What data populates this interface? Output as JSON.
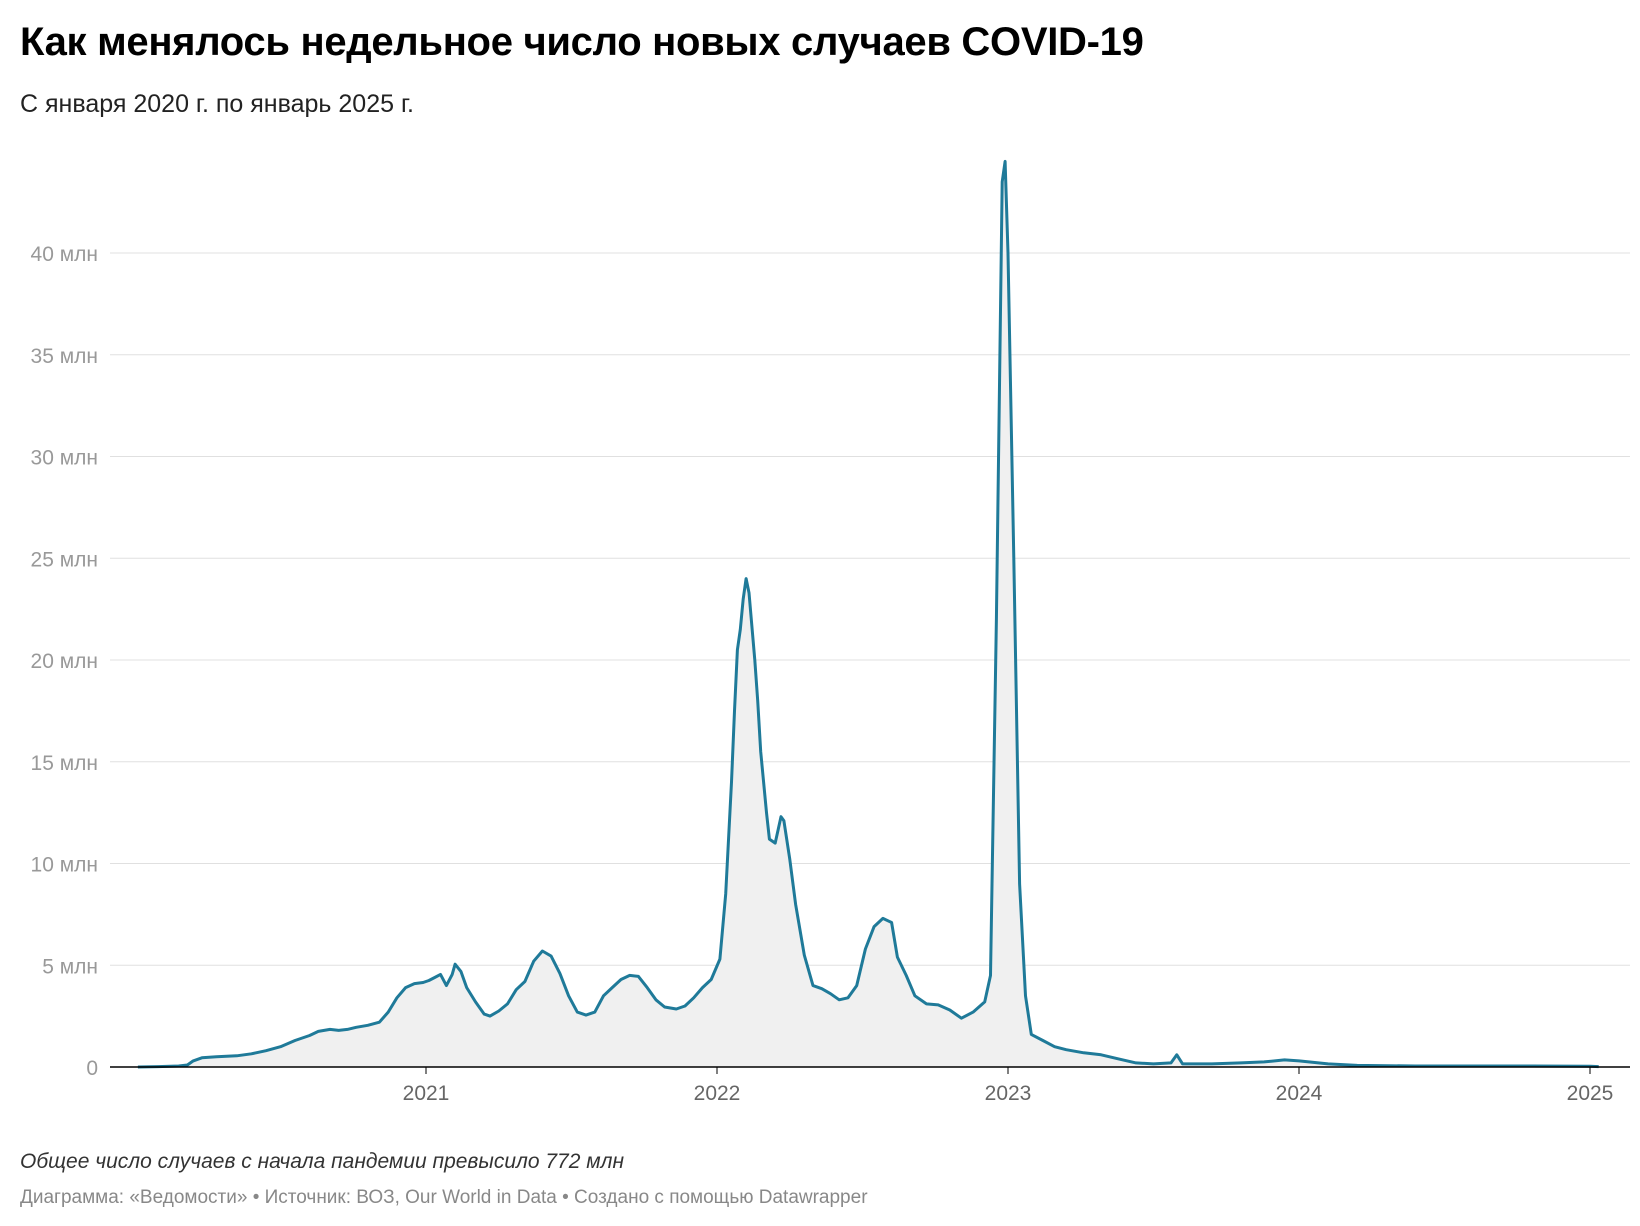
{
  "header": {
    "title": "Как менялось недельное число новых случаев COVID-19",
    "subtitle": "С января 2020 г. по январь 2025 г."
  },
  "footer": {
    "note": "Общее число случаев с начала пандемии превысило 772 млн",
    "credits": "Диаграмма: «Ведомости» • Источник: ВОЗ, Our World in Data • Создано с помощью Datawrapper"
  },
  "colors": {
    "line": "#1f7a99",
    "area": "#f0f0f0",
    "grid": "#e0e0e0",
    "axis": "#000000"
  },
  "chart_data": {
    "type": "area",
    "ylim": [
      0,
      45
    ],
    "xlim": [
      2020.0,
      2025.1
    ],
    "yticks": [
      {
        "value": 0,
        "label": "0"
      },
      {
        "value": 5,
        "label": "5 млн"
      },
      {
        "value": 10,
        "label": "10 млн"
      },
      {
        "value": 15,
        "label": "15 млн"
      },
      {
        "value": 20,
        "label": "20 млн"
      },
      {
        "value": 25,
        "label": "25 млн"
      },
      {
        "value": 30,
        "label": "30 млн"
      },
      {
        "value": 35,
        "label": "35 млн"
      },
      {
        "value": 40,
        "label": "40 млн"
      }
    ],
    "xticks": [
      {
        "value": 2021,
        "label": "2021"
      },
      {
        "value": 2022,
        "label": "2022"
      },
      {
        "value": 2023,
        "label": "2023"
      },
      {
        "value": 2024,
        "label": "2024"
      },
      {
        "value": 2025,
        "label": "2025"
      }
    ],
    "series": [
      {
        "values": [
          [
            2020.01,
            0
          ],
          [
            2020.08,
            0.02
          ],
          [
            2020.15,
            0.05
          ],
          [
            2020.18,
            0.1
          ],
          [
            2020.2,
            0.3
          ],
          [
            2020.23,
            0.45
          ],
          [
            2020.28,
            0.5
          ],
          [
            2020.35,
            0.55
          ],
          [
            2020.4,
            0.65
          ],
          [
            2020.45,
            0.8
          ],
          [
            2020.5,
            1.0
          ],
          [
            2020.55,
            1.3
          ],
          [
            2020.6,
            1.55
          ],
          [
            2020.63,
            1.75
          ],
          [
            2020.67,
            1.85
          ],
          [
            2020.7,
            1.8
          ],
          [
            2020.73,
            1.85
          ],
          [
            2020.76,
            1.95
          ],
          [
            2020.8,
            2.05
          ],
          [
            2020.84,
            2.2
          ],
          [
            2020.87,
            2.7
          ],
          [
            2020.9,
            3.4
          ],
          [
            2020.93,
            3.9
          ],
          [
            2020.96,
            4.1
          ],
          [
            2020.99,
            4.15
          ],
          [
            2021.01,
            4.25
          ],
          [
            2021.03,
            4.4
          ],
          [
            2021.05,
            4.55
          ],
          [
            2021.07,
            4.0
          ],
          [
            2021.09,
            4.55
          ],
          [
            2021.1,
            5.05
          ],
          [
            2021.12,
            4.7
          ],
          [
            2021.14,
            3.9
          ],
          [
            2021.17,
            3.2
          ],
          [
            2021.2,
            2.6
          ],
          [
            2021.22,
            2.5
          ],
          [
            2021.25,
            2.75
          ],
          [
            2021.28,
            3.1
          ],
          [
            2021.31,
            3.8
          ],
          [
            2021.34,
            4.2
          ],
          [
            2021.37,
            5.2
          ],
          [
            2021.4,
            5.7
          ],
          [
            2021.43,
            5.45
          ],
          [
            2021.46,
            4.6
          ],
          [
            2021.49,
            3.5
          ],
          [
            2021.52,
            2.7
          ],
          [
            2021.55,
            2.55
          ],
          [
            2021.58,
            2.7
          ],
          [
            2021.61,
            3.5
          ],
          [
            2021.64,
            3.9
          ],
          [
            2021.67,
            4.3
          ],
          [
            2021.7,
            4.5
          ],
          [
            2021.73,
            4.45
          ],
          [
            2021.76,
            3.9
          ],
          [
            2021.79,
            3.3
          ],
          [
            2021.82,
            2.95
          ],
          [
            2021.86,
            2.85
          ],
          [
            2021.89,
            3.0
          ],
          [
            2021.92,
            3.4
          ],
          [
            2021.95,
            3.9
          ],
          [
            2021.98,
            4.3
          ],
          [
            2022.01,
            5.3
          ],
          [
            2022.03,
            8.5
          ],
          [
            2022.05,
            14.0
          ],
          [
            2022.06,
            17.5
          ],
          [
            2022.07,
            20.5
          ],
          [
            2022.08,
            21.5
          ],
          [
            2022.09,
            23.0
          ],
          [
            2022.1,
            24.0
          ],
          [
            2022.11,
            23.3
          ],
          [
            2022.13,
            20.0
          ],
          [
            2022.14,
            18.0
          ],
          [
            2022.15,
            15.5
          ],
          [
            2022.17,
            12.5
          ],
          [
            2022.18,
            11.2
          ],
          [
            2022.2,
            11.0
          ],
          [
            2022.22,
            12.3
          ],
          [
            2022.23,
            12.1
          ],
          [
            2022.25,
            10.2
          ],
          [
            2022.27,
            8.0
          ],
          [
            2022.3,
            5.5
          ],
          [
            2022.33,
            4.0
          ],
          [
            2022.36,
            3.85
          ],
          [
            2022.39,
            3.6
          ],
          [
            2022.42,
            3.3
          ],
          [
            2022.45,
            3.4
          ],
          [
            2022.48,
            4.0
          ],
          [
            2022.51,
            5.8
          ],
          [
            2022.54,
            6.9
          ],
          [
            2022.57,
            7.3
          ],
          [
            2022.6,
            7.1
          ],
          [
            2022.62,
            5.4
          ],
          [
            2022.65,
            4.5
          ],
          [
            2022.68,
            3.5
          ],
          [
            2022.72,
            3.1
          ],
          [
            2022.76,
            3.05
          ],
          [
            2022.8,
            2.8
          ],
          [
            2022.84,
            2.4
          ],
          [
            2022.88,
            2.7
          ],
          [
            2022.92,
            3.2
          ],
          [
            2022.94,
            4.5
          ],
          [
            2022.96,
            22.0
          ],
          [
            2022.98,
            43.5
          ],
          [
            2022.99,
            44.5
          ],
          [
            2023.0,
            40.0
          ],
          [
            2023.02,
            25.0
          ],
          [
            2023.04,
            9.0
          ],
          [
            2023.06,
            3.5
          ],
          [
            2023.08,
            1.6
          ],
          [
            2023.12,
            1.3
          ],
          [
            2023.16,
            1.0
          ],
          [
            2023.2,
            0.85
          ],
          [
            2023.26,
            0.7
          ],
          [
            2023.32,
            0.6
          ],
          [
            2023.38,
            0.4
          ],
          [
            2023.44,
            0.2
          ],
          [
            2023.5,
            0.15
          ],
          [
            2023.56,
            0.2
          ],
          [
            2023.58,
            0.6
          ],
          [
            2023.6,
            0.15
          ],
          [
            2023.7,
            0.15
          ],
          [
            2023.8,
            0.2
          ],
          [
            2023.88,
            0.25
          ],
          [
            2023.95,
            0.35
          ],
          [
            2024.0,
            0.3
          ],
          [
            2024.1,
            0.15
          ],
          [
            2024.2,
            0.08
          ],
          [
            2024.4,
            0.05
          ],
          [
            2024.6,
            0.05
          ],
          [
            2024.8,
            0.05
          ],
          [
            2025.0,
            0.04
          ],
          [
            2025.03,
            0.02
          ]
        ]
      }
    ]
  }
}
